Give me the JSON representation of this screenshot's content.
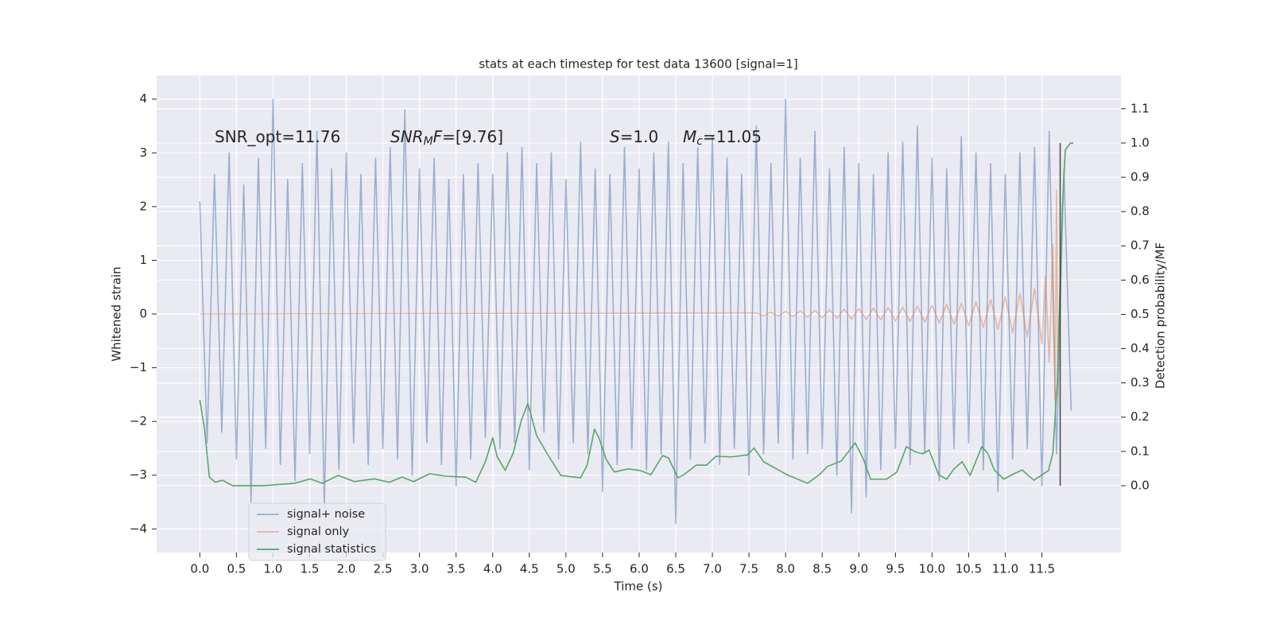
{
  "chart_data": {
    "type": "line",
    "title": "stats at each timestep for test data 13600 [signal=1]",
    "xlabel": "Time (s)",
    "ylabel": "Whitened strain",
    "y2label": "Detection probability/MF",
    "xlim": [
      -0.59,
      12.58
    ],
    "ylim": [
      -4.44,
      4.44
    ],
    "y2lim": [
      -0.195,
      1.197
    ],
    "xticks": [
      {
        "value": 0,
        "label": "0.0"
      },
      0.5,
      {
        "value": 1,
        "label": "1.0"
      },
      1.5,
      {
        "value": 2,
        "label": "2.0"
      },
      2.5,
      {
        "value": 3,
        "label": "3.0"
      },
      3.5,
      {
        "value": 4,
        "label": "4.0"
      },
      4.5,
      {
        "value": 5,
        "label": "5.0"
      },
      5.5,
      {
        "value": 6,
        "label": "6.0"
      },
      6.5,
      {
        "value": 7,
        "label": "7.0"
      },
      7.5,
      {
        "value": 8,
        "label": "8.0"
      },
      8.5,
      {
        "value": 9,
        "label": "9.0"
      },
      9.5,
      {
        "value": 10,
        "label": "10.0"
      },
      10.5,
      {
        "value": 11,
        "label": "11.0"
      },
      11.5
    ],
    "yticks": [
      {
        "value": -4,
        "label": "−4"
      },
      {
        "value": -3,
        "label": "−3"
      },
      {
        "value": -2,
        "label": "−2"
      },
      {
        "value": -1,
        "label": "−1"
      },
      0,
      1,
      2,
      3,
      4
    ],
    "y2ticks": [
      {
        "value": 0,
        "label": "0.0"
      },
      0.1,
      0.2,
      0.3,
      0.4,
      0.5,
      0.6,
      0.7,
      0.8,
      0.9,
      {
        "value": 1,
        "label": "1.0"
      },
      1.1
    ],
    "grid": true,
    "legend": "lower left",
    "annotations": [
      [
        {
          "text": "SNR_opt=11.76",
          "style": "normal"
        }
      ],
      [
        {
          "text": "SNR",
          "style": "italic"
        },
        {
          "text": "M",
          "style": "sub"
        },
        {
          "text": "F",
          "style": "italic"
        },
        {
          "text": "=[9.76]",
          "style": "normal"
        }
      ],
      [
        {
          "text": "S",
          "style": "italic"
        },
        {
          "text": "=1.0",
          "style": "normal"
        }
      ],
      [
        {
          "text": "M",
          "style": "italic"
        },
        {
          "text": "c",
          "style": "sub"
        },
        {
          "text": "=11.05",
          "style": "normal"
        }
      ]
    ],
    "vline": {
      "x": 11.75,
      "y2": [
        0,
        1
      ],
      "color": "#333333"
    },
    "series": [
      {
        "name": "signal+ noise",
        "color": "#4c72b0",
        "opacity": 0.5,
        "x": [
          0,
          0.1,
          0.2,
          0.3,
          0.4,
          0.5,
          0.6,
          0.7,
          0.8,
          0.9,
          1,
          1.1,
          1.2,
          1.3,
          1.4,
          1.5,
          1.6,
          1.7,
          1.8,
          1.9,
          2,
          2.1,
          2.2,
          2.3,
          2.4,
          2.5,
          2.6,
          2.7,
          2.8,
          2.9,
          3,
          3.1,
          3.2,
          3.3,
          3.4,
          3.5,
          3.6,
          3.7,
          3.8,
          3.9,
          4,
          4.1,
          4.2,
          4.3,
          4.4,
          4.5,
          4.6,
          4.7,
          4.8,
          4.9,
          5,
          5.1,
          5.2,
          5.3,
          5.4,
          5.5,
          5.6,
          5.7,
          5.8,
          5.9,
          6,
          6.1,
          6.2,
          6.3,
          6.4,
          6.5,
          6.6,
          6.7,
          6.8,
          6.9,
          7,
          7.1,
          7.2,
          7.3,
          7.4,
          7.5,
          7.6,
          7.7,
          7.8,
          7.9,
          8,
          8.1,
          8.2,
          8.3,
          8.4,
          8.5,
          8.6,
          8.7,
          8.8,
          8.9,
          9,
          9.1,
          9.2,
          9.3,
          9.4,
          9.5,
          9.6,
          9.7,
          9.8,
          9.9,
          10,
          10.1,
          10.2,
          10.3,
          10.4,
          10.5,
          10.6,
          10.7,
          10.8,
          10.9,
          11,
          11.1,
          11.2,
          11.3,
          11.4,
          11.5,
          11.6,
          11.7,
          11.8,
          11.9
        ],
        "values": [
          2.1,
          -2.4,
          2.6,
          -2.2,
          3.0,
          -2.7,
          2.4,
          -3.5,
          2.9,
          -2.5,
          4.0,
          -2.8,
          2.5,
          -3.1,
          2.8,
          -2.6,
          3.4,
          -3.6,
          2.7,
          -2.9,
          3.0,
          -2.4,
          2.6,
          -2.8,
          2.9,
          -2.5,
          3.1,
          -2.7,
          3.8,
          -3.0,
          2.7,
          -2.4,
          2.9,
          -2.8,
          2.5,
          -3.2,
          2.6,
          -2.7,
          2.8,
          -2.3,
          2.6,
          -2.5,
          3.0,
          -2.4,
          3.1,
          -2.9,
          2.8,
          -2.2,
          3.0,
          -2.7,
          2.5,
          -2.4,
          3.2,
          -2.6,
          2.7,
          -3.3,
          2.6,
          -2.8,
          3.1,
          -2.5,
          2.7,
          -2.9,
          3.0,
          -2.6,
          3.2,
          -3.9,
          2.8,
          -2.7,
          3.1,
          -2.4,
          3.3,
          -2.8,
          2.9,
          -2.5,
          2.6,
          -3.0,
          3.5,
          -2.6,
          2.8,
          -2.4,
          4.0,
          -2.7,
          2.9,
          -2.6,
          3.4,
          -2.5,
          2.7,
          -3.0,
          3.1,
          -3.7,
          2.8,
          -3.4,
          2.6,
          -2.9,
          3.0,
          -2.5,
          3.2,
          -2.8,
          3.5,
          -2.6,
          2.9,
          -3.1,
          2.7,
          -2.5,
          3.3,
          -2.4,
          3.0,
          -2.9,
          2.8,
          -3.3,
          2.6,
          -2.7,
          3.0,
          -2.5,
          3.1,
          -3.2,
          3.4,
          -2.6,
          2.7,
          -1.8
        ]
      },
      {
        "name": "signal only",
        "color": "#dd8452",
        "opacity": 0.5,
        "x": [
          0,
          7.6,
          7.7,
          7.8,
          7.9,
          8.0,
          8.1,
          8.2,
          8.3,
          8.4,
          8.5,
          8.6,
          8.7,
          8.8,
          8.9,
          9.0,
          9.1,
          9.2,
          9.3,
          9.4,
          9.5,
          9.6,
          9.7,
          9.8,
          9.9,
          10.0,
          10.1,
          10.2,
          10.3,
          10.4,
          10.5,
          10.6,
          10.7,
          10.8,
          10.9,
          11.0,
          11.1,
          11.2,
          11.3,
          11.4,
          11.5,
          11.55,
          11.6,
          11.65,
          11.68,
          11.7,
          11.72
        ],
        "values": [
          0,
          0.02,
          -0.03,
          0.03,
          -0.04,
          0.05,
          -0.05,
          0.06,
          -0.06,
          0.07,
          -0.07,
          0.08,
          -0.08,
          0.09,
          -0.09,
          0.1,
          -0.1,
          0.11,
          -0.11,
          0.12,
          -0.13,
          0.13,
          -0.14,
          0.15,
          -0.15,
          0.16,
          -0.17,
          0.18,
          -0.19,
          0.2,
          -0.22,
          0.23,
          -0.25,
          0.27,
          -0.29,
          0.32,
          -0.35,
          0.38,
          -0.42,
          0.47,
          -0.55,
          0.7,
          -0.9,
          1.3,
          -1.6,
          2.3,
          -1.5
        ]
      },
      {
        "name": "signal statistics",
        "color": "#55a868",
        "opacity": 1,
        "axis": "y2",
        "x": [
          0,
          0.065,
          0.13,
          0.21,
          0.31,
          0.45,
          0.86,
          1.29,
          1.51,
          1.67,
          1.89,
          2.11,
          2.38,
          2.59,
          2.76,
          2.92,
          3.14,
          3.35,
          3.63,
          3.77,
          3.9,
          4.0,
          4.06,
          4.17,
          4.28,
          4.39,
          4.48,
          4.6,
          4.74,
          4.93,
          5.2,
          5.29,
          5.39,
          5.45,
          5.55,
          5.66,
          5.85,
          6.02,
          6.16,
          6.32,
          6.4,
          6.53,
          6.61,
          6.78,
          6.92,
          7.05,
          7.26,
          7.48,
          7.57,
          7.7,
          8.02,
          8.3,
          8.46,
          8.57,
          8.76,
          8.95,
          9.06,
          9.16,
          9.38,
          9.52,
          9.65,
          9.76,
          9.87,
          9.96,
          10.09,
          10.2,
          10.3,
          10.41,
          10.52,
          10.68,
          10.76,
          10.85,
          10.98,
          11.12,
          11.23,
          11.39,
          11.59,
          11.65,
          11.71,
          11.78,
          11.82,
          11.89,
          11.93
        ],
        "values": [
          0.25,
          0.165,
          0.025,
          0.01,
          0.016,
          0.0,
          0.0,
          0.007,
          0.02,
          0.007,
          0.03,
          0.012,
          0.02,
          0.01,
          0.025,
          0.012,
          0.035,
          0.028,
          0.025,
          0.01,
          0.07,
          0.14,
          0.085,
          0.045,
          0.095,
          0.19,
          0.24,
          0.146,
          0.095,
          0.03,
          0.023,
          0.06,
          0.165,
          0.14,
          0.077,
          0.04,
          0.049,
          0.044,
          0.032,
          0.088,
          0.081,
          0.023,
          0.032,
          0.06,
          0.06,
          0.086,
          0.084,
          0.09,
          0.11,
          0.07,
          0.032,
          0.007,
          0.032,
          0.056,
          0.072,
          0.125,
          0.079,
          0.019,
          0.019,
          0.04,
          0.114,
          0.1,
          0.093,
          0.104,
          0.032,
          0.019,
          0.049,
          0.07,
          0.03,
          0.114,
          0.095,
          0.046,
          0.019,
          0.035,
          0.046,
          0.016,
          0.044,
          0.095,
          0.3,
          0.81,
          0.98,
          1.0,
          1.0
        ]
      }
    ]
  }
}
